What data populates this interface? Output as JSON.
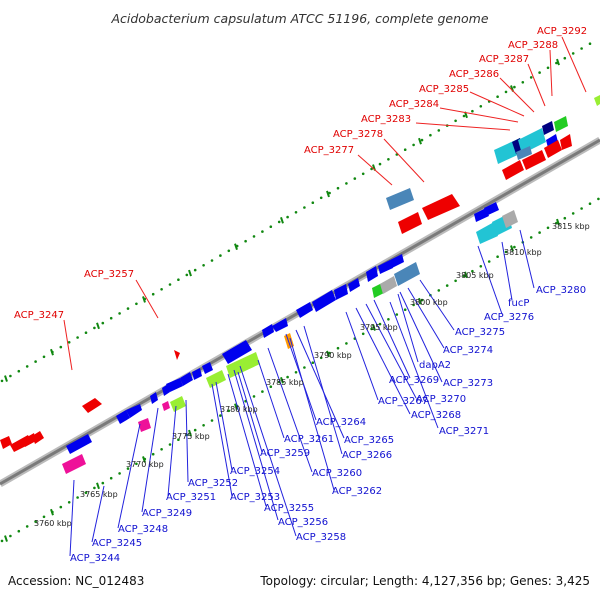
{
  "title": "Acidobacterium capsulatum ATCC 51196, complete genome",
  "footer": {
    "accession": "Accession: NC_012483",
    "summary": "Topology: circular; Length: 4,127,356 bp; Genes: 3,425"
  },
  "ticks": [
    "3760 kbp",
    "3765 kbp",
    "3770 kbp",
    "3775 kbp",
    "3780 kbp",
    "3785 kbp",
    "3790 kbp",
    "3795 kbp",
    "3800 kbp",
    "3805 kbp",
    "3810 kbp",
    "3815 kbp"
  ],
  "red_labels": [
    "ACP_3292",
    "ACP_3288",
    "ACP_3287",
    "ACP_3286",
    "ACP_3285",
    "ACP_3284",
    "ACP_3283",
    "ACP_3278",
    "ACP_3277",
    "ACP_3257",
    "ACP_3247"
  ],
  "blue_labels": [
    "ACP_3280",
    "fucP",
    "ACP_3276",
    "ACP_3275",
    "ACP_3274",
    "dapA2",
    "ACP_3269",
    "ACP_3273",
    "ACP_3270",
    "ACP_3267",
    "ACP_3268",
    "ACP_3271",
    "ACP_3264",
    "ACP_3265",
    "ACP_3261",
    "ACP_3266",
    "ACP_3259",
    "ACP_3260",
    "ACP_3254",
    "ACP_3262",
    "ACP_3252",
    "ACP_3253",
    "ACP_3251",
    "ACP_3255",
    "ACP_3249",
    "ACP_3256",
    "ACP_3248",
    "ACP_3258",
    "ACP_3245",
    "ACP_3244"
  ],
  "colors": {
    "red": "#ee0000",
    "blue": "#0000ee",
    "cyan": "#22c4d4",
    "steel": "#4a86b8",
    "green": "#22cc22",
    "lime": "#99ee33",
    "magenta": "#ee1199",
    "orange": "#ff9900",
    "navy": "#000080",
    "grey": "#aaaaaa",
    "backbone": "#888888",
    "dots": "#118811"
  }
}
